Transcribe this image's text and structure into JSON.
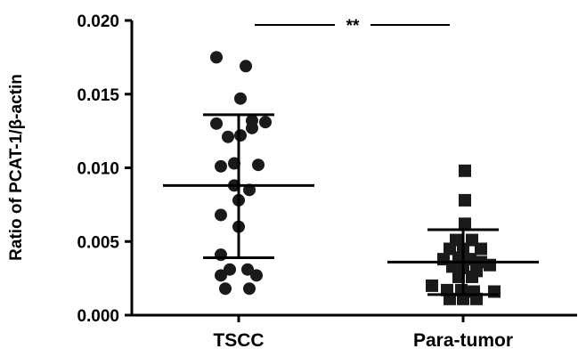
{
  "chart_data": {
    "type": "scatter",
    "title": "",
    "xlabel": "",
    "ylabel": "Ratio of PCAT-1/β-actin",
    "ylim": [
      0,
      0.02
    ],
    "yticks": [
      "0.000",
      "0.005",
      "0.010",
      "0.015",
      "0.020"
    ],
    "categories": [
      "TSCC",
      "Para-tumor"
    ],
    "grid": false,
    "legend": "none",
    "colors": {
      "marker": "#1a1a1a",
      "axis": "#000000"
    },
    "series": [
      {
        "category": "TSCC",
        "marker": "circle",
        "mean": 0.0088,
        "sd_upper": 0.0136,
        "sd_lower": 0.0039,
        "points": [
          {
            "offset": -0.25,
            "y": 0.0175
          },
          {
            "offset": 0.08,
            "y": 0.0169
          },
          {
            "offset": 0.02,
            "y": 0.0147
          },
          {
            "offset": -0.25,
            "y": 0.013
          },
          {
            "offset": 0.15,
            "y": 0.0132
          },
          {
            "offset": 0.3,
            "y": 0.0131
          },
          {
            "offset": -0.12,
            "y": 0.0121
          },
          {
            "offset": 0.02,
            "y": 0.0122
          },
          {
            "offset": 0.15,
            "y": 0.0127
          },
          {
            "offset": -0.2,
            "y": 0.0101
          },
          {
            "offset": -0.05,
            "y": 0.0103
          },
          {
            "offset": 0.22,
            "y": 0.0102
          },
          {
            "offset": -0.05,
            "y": 0.0088
          },
          {
            "offset": 0.12,
            "y": 0.0085
          },
          {
            "offset": 0.0,
            "y": 0.0078
          },
          {
            "offset": -0.2,
            "y": 0.0068
          },
          {
            "offset": 0.0,
            "y": 0.006
          },
          {
            "offset": -0.2,
            "y": 0.0041
          },
          {
            "offset": -0.1,
            "y": 0.0031
          },
          {
            "offset": 0.1,
            "y": 0.0031
          },
          {
            "offset": -0.2,
            "y": 0.0027
          },
          {
            "offset": 0.2,
            "y": 0.0027
          },
          {
            "offset": -0.15,
            "y": 0.0018
          },
          {
            "offset": 0.12,
            "y": 0.0018
          }
        ]
      },
      {
        "category": "Para-tumor",
        "marker": "square",
        "mean": 0.0036,
        "sd_upper": 0.0058,
        "sd_lower": 0.0014,
        "points": [
          {
            "offset": 0.02,
            "y": 0.0098
          },
          {
            "offset": 0.02,
            "y": 0.0078
          },
          {
            "offset": 0.02,
            "y": 0.0062
          },
          {
            "offset": -0.08,
            "y": 0.0051
          },
          {
            "offset": 0.1,
            "y": 0.0051
          },
          {
            "offset": -0.15,
            "y": 0.0045
          },
          {
            "offset": 0.0,
            "y": 0.0045
          },
          {
            "offset": 0.2,
            "y": 0.0045
          },
          {
            "offset": -0.22,
            "y": 0.0038
          },
          {
            "offset": -0.05,
            "y": 0.0039
          },
          {
            "offset": 0.08,
            "y": 0.0038
          },
          {
            "offset": 0.2,
            "y": 0.0036
          },
          {
            "offset": -0.12,
            "y": 0.0033
          },
          {
            "offset": 0.0,
            "y": 0.0032
          },
          {
            "offset": 0.15,
            "y": 0.003
          },
          {
            "offset": -0.05,
            "y": 0.0026
          },
          {
            "offset": 0.1,
            "y": 0.0026
          },
          {
            "offset": 0.3,
            "y": 0.0034
          },
          {
            "offset": -0.35,
            "y": 0.002
          },
          {
            "offset": -0.18,
            "y": 0.0017
          },
          {
            "offset": -0.02,
            "y": 0.0017
          },
          {
            "offset": 0.12,
            "y": 0.0016
          },
          {
            "offset": 0.35,
            "y": 0.0016
          },
          {
            "offset": -0.15,
            "y": 0.0011
          },
          {
            "offset": 0.0,
            "y": 0.0011
          },
          {
            "offset": 0.15,
            "y": 0.0011
          }
        ]
      }
    ],
    "annotations": [
      {
        "text": "**",
        "between": [
          "TSCC",
          "Para-tumor"
        ],
        "y": 0.0197
      }
    ]
  }
}
